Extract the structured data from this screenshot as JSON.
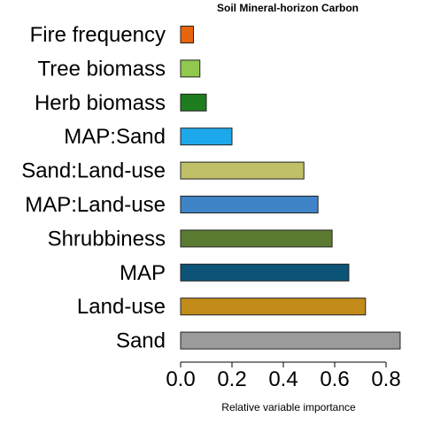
{
  "chart_data": {
    "type": "bar",
    "orientation": "horizontal",
    "title": "Soil Mineral-horizon Carbon",
    "xlabel": "Relative variable importance",
    "ylabel": "",
    "categories": [
      "Fire frequency",
      "Tree biomass",
      "Herb biomass",
      "MAP:Sand",
      "Sand:Land-use",
      "MAP:Land-use",
      "Shrubbiness",
      "MAP",
      "Land-use",
      "Sand"
    ],
    "values": [
      0.05,
      0.075,
      0.1,
      0.2,
      0.48,
      0.535,
      0.59,
      0.655,
      0.72,
      0.855
    ],
    "colors": [
      "#e8650f",
      "#92c850",
      "#1e7d1e",
      "#1ea8ec",
      "#c0c068",
      "#3f84c7",
      "#5b7b33",
      "#0b5478",
      "#c38b1a",
      "#9b9b9b"
    ],
    "xlim": [
      0,
      0.86
    ],
    "xticks": [
      0.0,
      0.2,
      0.4,
      0.6,
      0.8
    ],
    "xtick_labels": [
      "0.0",
      "0.2",
      "0.4",
      "0.6",
      "0.8"
    ],
    "grid": false,
    "legend": "none"
  }
}
